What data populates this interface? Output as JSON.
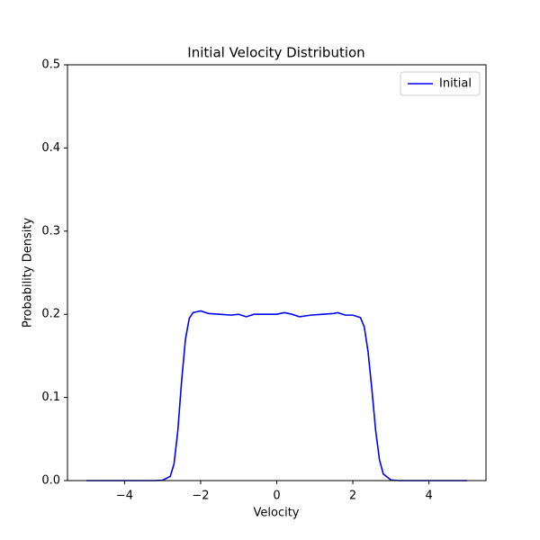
{
  "chart_data": {
    "type": "line",
    "title": "Initial Velocity Distribution",
    "xlabel": "Velocity",
    "ylabel": "Probability Density",
    "x": [
      -5,
      -4,
      -3.2,
      -3,
      -2.8,
      -2.7,
      -2.6,
      -2.5,
      -2.4,
      -2.3,
      -2.2,
      -2.0,
      -1.8,
      -1.5,
      -1.2,
      -1.0,
      -0.8,
      -0.6,
      -0.3,
      0,
      0.2,
      0.4,
      0.6,
      0.9,
      1.2,
      1.5,
      1.6,
      1.8,
      2.0,
      2.2,
      2.3,
      2.4,
      2.5,
      2.6,
      2.7,
      2.8,
      3.0,
      3.2,
      4,
      5
    ],
    "series": [
      {
        "name": "Initial",
        "color": "#0000ff",
        "values": [
          0,
          0,
          0,
          0.0005,
          0.005,
          0.02,
          0.06,
          0.12,
          0.17,
          0.195,
          0.202,
          0.204,
          0.201,
          0.2,
          0.199,
          0.2,
          0.197,
          0.2,
          0.2,
          0.2,
          0.202,
          0.2,
          0.197,
          0.199,
          0.2,
          0.201,
          0.202,
          0.199,
          0.199,
          0.196,
          0.185,
          0.155,
          0.11,
          0.06,
          0.025,
          0.008,
          0.0008,
          0,
          0,
          0
        ]
      }
    ],
    "xlim": [
      -5.5,
      5.5
    ],
    "ylim": [
      0,
      0.5
    ],
    "xticks": [
      {
        "value": -4,
        "label": "−4"
      },
      {
        "value": -2,
        "label": "−2"
      },
      0,
      2,
      4
    ],
    "yticks": [
      {
        "value": 0,
        "label": "0.0"
      },
      0.1,
      0.2,
      0.3,
      0.4,
      0.5
    ],
    "legend": "upper right"
  }
}
